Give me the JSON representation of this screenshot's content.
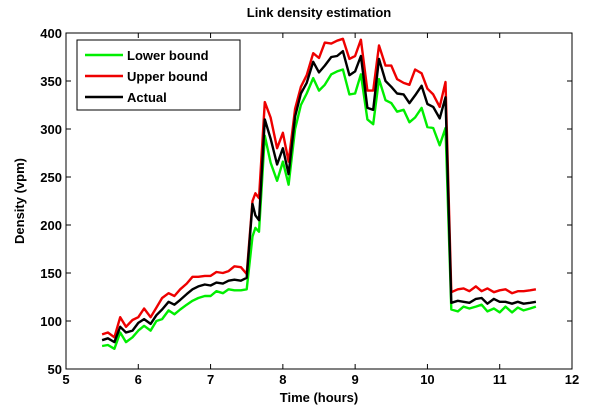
{
  "chart_data": {
    "type": "line",
    "title": "Link density estimation",
    "xlabel": "Time (hours)",
    "ylabel": "Density (vpm)",
    "xlim": [
      5,
      12
    ],
    "ylim": [
      50,
      400
    ],
    "xticks": [
      5,
      6,
      7,
      8,
      9,
      10,
      11,
      12
    ],
    "yticks": [
      50,
      100,
      150,
      200,
      250,
      300,
      350,
      400
    ],
    "grid": false,
    "legend_position": "top-left",
    "x": [
      5.5,
      5.58,
      5.67,
      5.75,
      5.83,
      5.92,
      6.0,
      6.08,
      6.17,
      6.25,
      6.33,
      6.42,
      6.5,
      6.58,
      6.67,
      6.75,
      6.83,
      6.92,
      7.0,
      7.08,
      7.17,
      7.25,
      7.33,
      7.42,
      7.5,
      7.58,
      7.62,
      7.67,
      7.75,
      7.83,
      7.92,
      8.0,
      8.08,
      8.17,
      8.25,
      8.33,
      8.42,
      8.5,
      8.58,
      8.67,
      8.75,
      8.83,
      8.92,
      9.0,
      9.08,
      9.17,
      9.25,
      9.33,
      9.42,
      9.5,
      9.58,
      9.67,
      9.75,
      9.83,
      9.92,
      10.0,
      10.08,
      10.17,
      10.25,
      10.33,
      10.42,
      10.5,
      10.58,
      10.67,
      10.75,
      10.83,
      10.92,
      11.0,
      11.08,
      11.17,
      11.25,
      11.33,
      11.42,
      11.5
    ],
    "series": [
      {
        "name": "Lower bound",
        "color": "#00ee00",
        "values": [
          74,
          75,
          71,
          88,
          78,
          83,
          90,
          95,
          90,
          100,
          102,
          111,
          107,
          112,
          117,
          121,
          124,
          126,
          126,
          131,
          129,
          133,
          132,
          132,
          133,
          188,
          197,
          193,
          293,
          265,
          246,
          266,
          242,
          300,
          325,
          337,
          353,
          340,
          346,
          357,
          360,
          362,
          336,
          337,
          357,
          310,
          305,
          352,
          330,
          327,
          318,
          320,
          307,
          312,
          322,
          302,
          301,
          283,
          301,
          112,
          110,
          115,
          113,
          115,
          117,
          110,
          113,
          109,
          115,
          109,
          114,
          111,
          113,
          115
        ]
      },
      {
        "name": "Upper bound",
        "color": "#ee0000",
        "values": [
          86,
          88,
          83,
          104,
          94,
          101,
          104,
          113,
          104,
          114,
          124,
          129,
          126,
          133,
          139,
          146,
          146,
          147,
          147,
          151,
          150,
          152,
          157,
          156,
          149,
          225,
          233,
          228,
          328,
          312,
          280,
          296,
          266,
          321,
          344,
          356,
          379,
          374,
          390,
          389,
          392,
          394,
          373,
          376,
          393,
          340,
          340,
          387,
          366,
          366,
          352,
          348,
          346,
          362,
          358,
          342,
          336,
          323,
          349,
          130,
          133,
          134,
          131,
          136,
          131,
          134,
          130,
          132,
          133,
          129,
          131,
          131,
          132,
          133
        ]
      },
      {
        "name": "Actual",
        "color": "#000000",
        "values": [
          80,
          82,
          78,
          94,
          88,
          90,
          98,
          102,
          97,
          106,
          112,
          120,
          117,
          122,
          128,
          133,
          136,
          138,
          137,
          140,
          139,
          142,
          143,
          142,
          145,
          222,
          210,
          205,
          310,
          290,
          263,
          280,
          253,
          313,
          337,
          348,
          370,
          359,
          366,
          375,
          376,
          381,
          356,
          360,
          376,
          322,
          320,
          373,
          350,
          344,
          337,
          336,
          327,
          335,
          345,
          326,
          323,
          311,
          333,
          119,
          121,
          120,
          119,
          123,
          124,
          118,
          123,
          120,
          120,
          118,
          120,
          118,
          119,
          120
        ]
      }
    ]
  }
}
